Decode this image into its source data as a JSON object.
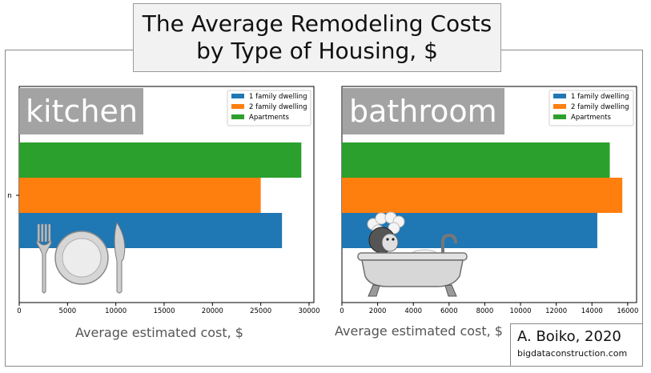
{
  "title": {
    "line1": "The Average Remodeling Costs",
    "line2": "by Type of Housing, $"
  },
  "credit": {
    "author": "A. Boiko, 2020",
    "site": "bigdataconstruction.com"
  },
  "colors": {
    "1 family dwelling": "#1f77b4",
    "2 family dwelling": "#ff7f0e",
    "Apartments": "#2ca02c"
  },
  "icons": [
    "plate-fork-knife-icon",
    "person-in-bathtub-icon"
  ],
  "chart_data": [
    {
      "type": "bar",
      "orientation": "horizontal",
      "label": "kitchen",
      "categories": [
        "n"
      ],
      "series": [
        {
          "name": "1 family dwelling",
          "values": [
            27200
          ]
        },
        {
          "name": "2 family dwelling",
          "values": [
            25000
          ]
        },
        {
          "name": "Apartments",
          "values": [
            29200
          ]
        }
      ],
      "xlabel": "Average estimated cost, $",
      "xlim": [
        0,
        30500
      ],
      "xticks": [
        0,
        5000,
        10000,
        15000,
        20000,
        25000,
        30000
      ],
      "legend": "top-right",
      "grid": false
    },
    {
      "type": "bar",
      "orientation": "horizontal",
      "label": "bathroom",
      "categories": [
        ""
      ],
      "series": [
        {
          "name": "1 family dwelling",
          "values": [
            14300
          ]
        },
        {
          "name": "2 family dwelling",
          "values": [
            15700
          ]
        },
        {
          "name": "Apartments",
          "values": [
            15000
          ]
        }
      ],
      "xlabel": "Average estimated cost, $",
      "xlim": [
        0,
        16500
      ],
      "xticks": [
        0,
        2000,
        4000,
        6000,
        8000,
        10000,
        12000,
        14000,
        16000
      ],
      "legend": "top-right",
      "grid": false
    }
  ]
}
